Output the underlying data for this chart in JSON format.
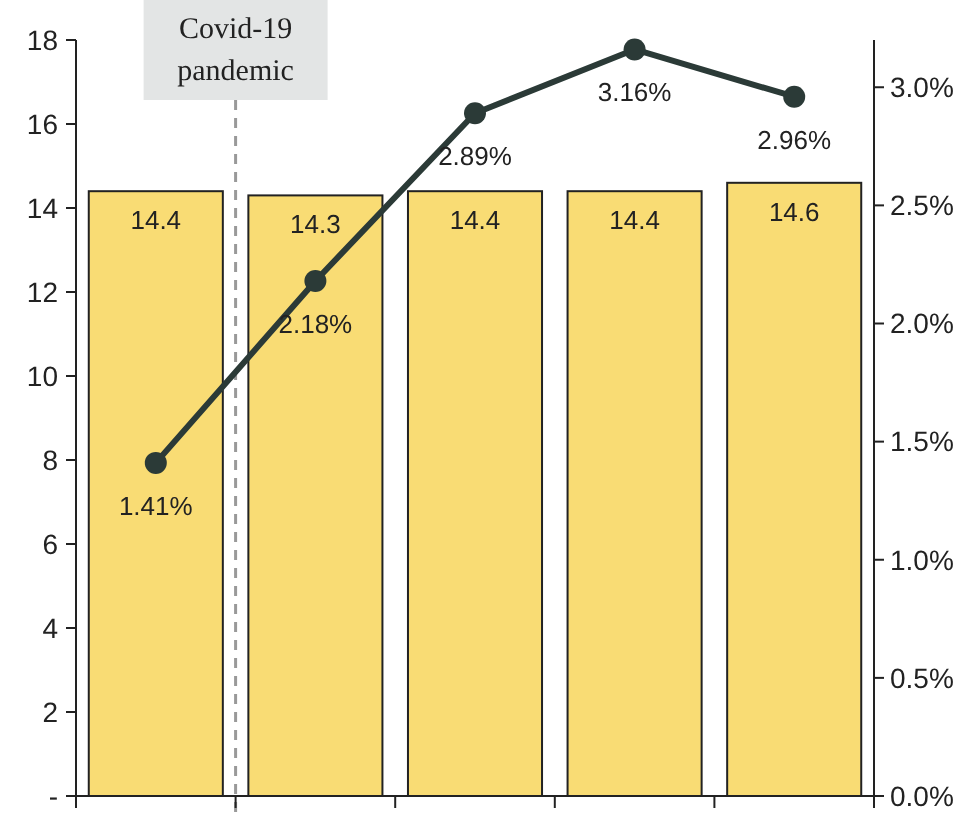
{
  "chart_data": {
    "type": "bar",
    "categories": [
      null,
      null,
      null,
      null,
      null
    ],
    "series": [
      {
        "color": "#f9dc74",
        "values": [
          14.4,
          14.3,
          14.4,
          14.4,
          14.6
        ],
        "value_labels": [
          "14.4",
          "14.3",
          "14.4",
          "14.4",
          "14.6"
        ]
      },
      {
        "type": "line",
        "axis": "y2",
        "color": "#2b3a37",
        "values": [
          1.41,
          2.18,
          2.89,
          3.16,
          2.96
        ],
        "value_labels": [
          "1.41%",
          "2.18%",
          "2.89%",
          "3.16%",
          "2.96%"
        ]
      }
    ],
    "ylim": [
      0,
      18
    ],
    "yticks": [
      {
        "value": 0,
        "label": "-"
      },
      2,
      4,
      6,
      8,
      10,
      12,
      14,
      16,
      18
    ],
    "y2lim": [
      0,
      3.2
    ],
    "y2ticks": [
      {
        "value": 0,
        "label": "0.0%"
      },
      {
        "value": 0.5,
        "label": "0.5%"
      },
      {
        "value": 1,
        "label": "1.0%"
      },
      {
        "value": 1.5,
        "label": "1.5%"
      },
      {
        "value": 2,
        "label": "2.0%"
      },
      {
        "value": 2.5,
        "label": "2.5%"
      },
      {
        "value": 3,
        "label": "3.0%"
      }
    ],
    "marker": "circle",
    "grid": false,
    "annotations": [
      "Covid-19 pandemic"
    ]
  }
}
